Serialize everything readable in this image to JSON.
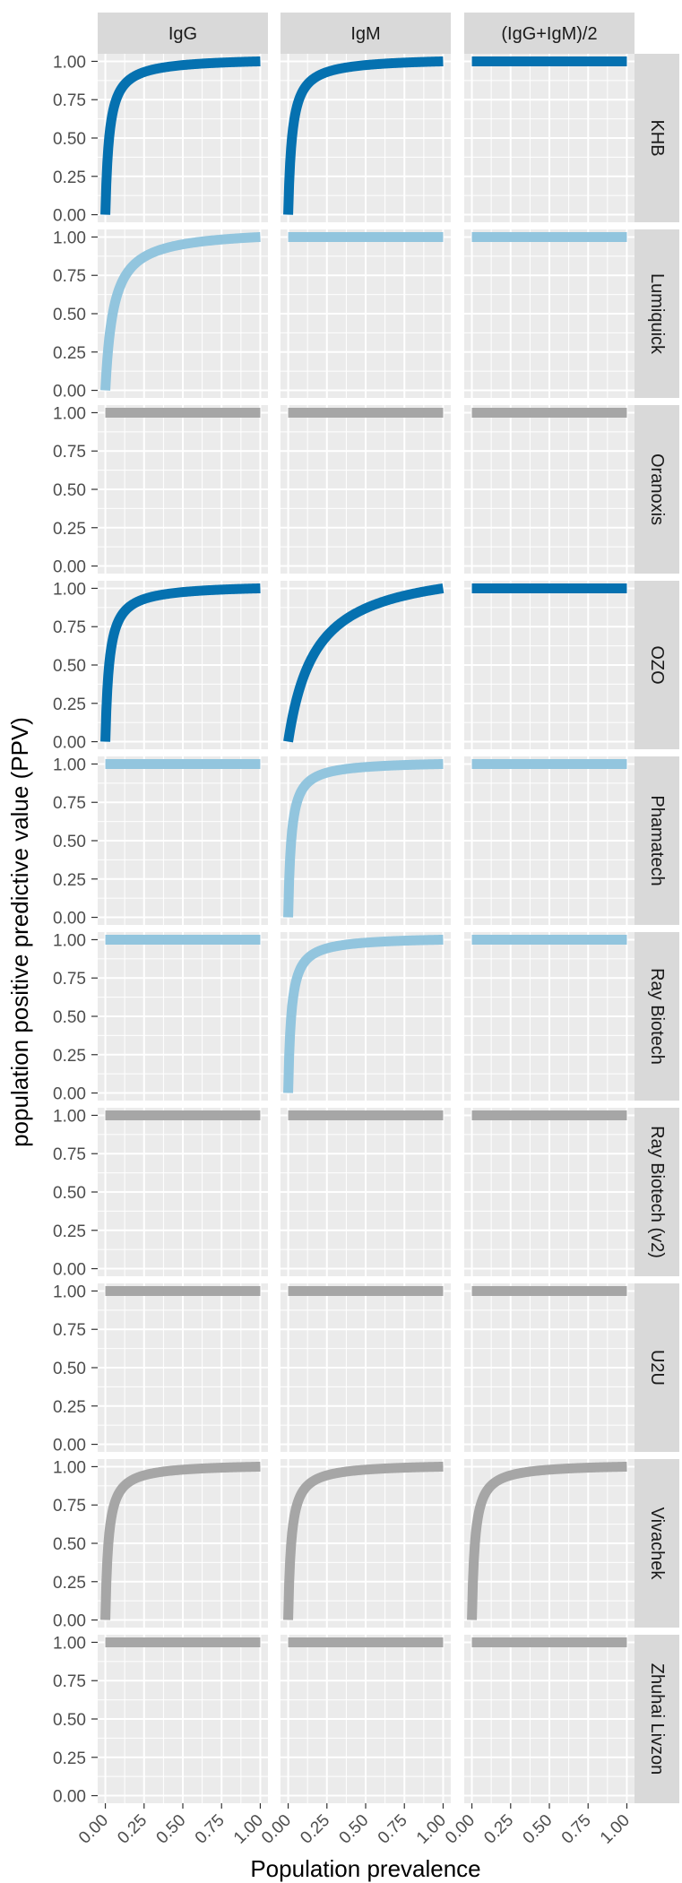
{
  "colors": {
    "dark_blue": "#0571b0",
    "light_blue": "#92c5de",
    "gray": "#a6a6a6",
    "panel_bg": "#ebebeb",
    "strip_bg": "#d9d9d9",
    "grid": "#ffffff"
  },
  "chart_data": {
    "type": "line",
    "xlabel": "Population prevalence",
    "ylabel": "population positive predictive value (PPV)",
    "xlim": [
      0,
      1
    ],
    "ylim": [
      0,
      1
    ],
    "x_ticks": [
      "0.00",
      "0.25",
      "0.50",
      "0.75",
      "1.00"
    ],
    "y_ticks": [
      "0.00",
      "0.25",
      "0.50",
      "0.75",
      "1.00"
    ],
    "columns": [
      "IgG",
      "IgM",
      "(IgG+IgM)/2"
    ],
    "rows": [
      {
        "name": "KHB",
        "panels": [
          {
            "color": "dark_blue",
            "constant": false,
            "k": 0.025
          },
          {
            "color": "dark_blue",
            "constant": false,
            "k": 0.025
          },
          {
            "color": "dark_blue",
            "constant": true,
            "value": 1.0
          }
        ]
      },
      {
        "name": "Lumiquick",
        "panels": [
          {
            "color": "light_blue",
            "constant": false,
            "k": 0.05
          },
          {
            "color": "light_blue",
            "constant": true,
            "value": 1.0
          },
          {
            "color": "light_blue",
            "constant": true,
            "value": 1.0
          }
        ]
      },
      {
        "name": "Oranoxis",
        "panels": [
          {
            "color": "gray",
            "constant": true,
            "value": 1.0
          },
          {
            "color": "gray",
            "constant": true,
            "value": 1.0
          },
          {
            "color": "gray",
            "constant": true,
            "value": 1.0
          }
        ]
      },
      {
        "name": "OZO",
        "panels": [
          {
            "color": "dark_blue",
            "constant": false,
            "k": 0.025
          },
          {
            "color": "dark_blue",
            "constant": false,
            "k": 0.15
          },
          {
            "color": "dark_blue",
            "constant": true,
            "value": 1.0
          }
        ]
      },
      {
        "name": "Phamatech",
        "panels": [
          {
            "color": "light_blue",
            "constant": true,
            "value": 1.0
          },
          {
            "color": "light_blue",
            "constant": false,
            "k": 0.02
          },
          {
            "color": "light_blue",
            "constant": true,
            "value": 1.0
          }
        ]
      },
      {
        "name": "Ray Biotech",
        "panels": [
          {
            "color": "light_blue",
            "constant": true,
            "value": 1.0
          },
          {
            "color": "light_blue",
            "constant": false,
            "k": 0.02
          },
          {
            "color": "light_blue",
            "constant": true,
            "value": 1.0
          }
        ]
      },
      {
        "name": "Ray Biotech (v2)",
        "panels": [
          {
            "color": "gray",
            "constant": true,
            "value": 1.0
          },
          {
            "color": "gray",
            "constant": true,
            "value": 1.0
          },
          {
            "color": "gray",
            "constant": true,
            "value": 1.0
          }
        ]
      },
      {
        "name": "U2U",
        "panels": [
          {
            "color": "gray",
            "constant": true,
            "value": 1.0
          },
          {
            "color": "gray",
            "constant": true,
            "value": 1.0
          },
          {
            "color": "gray",
            "constant": true,
            "value": 1.0
          }
        ]
      },
      {
        "name": "Vivachek",
        "panels": [
          {
            "color": "gray",
            "constant": false,
            "k": 0.02
          },
          {
            "color": "gray",
            "constant": false,
            "k": 0.02
          },
          {
            "color": "gray",
            "constant": false,
            "k": 0.02
          }
        ]
      },
      {
        "name": "Zhuhai Livzon",
        "panels": [
          {
            "color": "gray",
            "constant": true,
            "value": 1.0
          },
          {
            "color": "gray",
            "constant": true,
            "value": 1.0
          },
          {
            "color": "gray",
            "constant": true,
            "value": 1.0
          }
        ]
      }
    ]
  }
}
